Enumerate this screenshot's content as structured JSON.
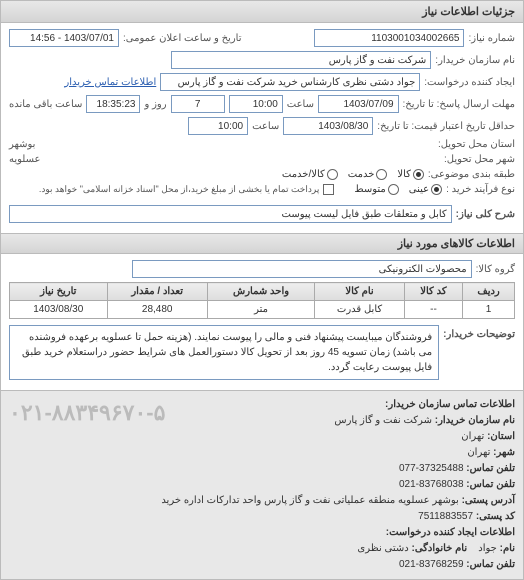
{
  "panel_title": "جزئیات اطلاعات نیاز",
  "header": {
    "request_no_label": "شماره نیاز:",
    "request_no": "1103001034002665",
    "announce_label": "تاریخ و ساعت اعلان عمومی:",
    "announce_value": "1403/07/01 - 14:56",
    "buyer_name_label": "نام سازمان خریدار:",
    "buyer_name": "شرکت نفت و گاز پارس",
    "creator_label": "ایجاد کننده درخواست:",
    "creator": "جواد دشتی نظری کارشناس خرید  شرکت نفت و گاز پارس",
    "contact_link": "اطلاعات تماس خریدار",
    "deadline_label": "مهلت ارسال پاسخ: تا تاریخ:",
    "deadline_date": "1403/07/09",
    "time_label": "ساعت",
    "deadline_time": "10:00",
    "days_label": "روز و",
    "days_value": "7",
    "remain_label": "ساعت باقی مانده",
    "remain_value": "18:35:23",
    "validity_label": "حداقل تاریخ اعتبار قیمت: تا تاریخ:",
    "validity_date": "1403/08/30",
    "validity_time": "10:00",
    "province_label": "استان محل تحویل:",
    "province": "بوشهر",
    "city_label": "شهر محل تحویل:",
    "city": "عسلویه",
    "category_label": "طبقه بندی موضوعی:",
    "cat_goods": "کالا",
    "cat_service": "خدمت",
    "cat_both": "کالا/خدمت",
    "process_label": "نوع فرآیند خرید :",
    "proc_cash": "عینی",
    "proc_medium": "متوسط",
    "pay_note": "پرداخت تمام یا بخشی از مبلغ خرید،از محل \"اسناد خزانه اسلامی\" خواهد بود."
  },
  "desc": {
    "label": "شرح کلی نیاز:",
    "value": "کابل و متعلقات طبق فایل لیست پیوست"
  },
  "goods": {
    "title": "اطلاعات کالاهای مورد نیاز",
    "group_label": "گروه کالا:",
    "group_value": "محصولات الکترونیکی",
    "columns": [
      "ردیف",
      "کد کالا",
      "نام کالا",
      "واحد شمارش",
      "تعداد / مقدار",
      "تاریخ نیاز"
    ],
    "rows": [
      [
        "1",
        "--",
        "کابل قدرت",
        "متر",
        "28,480",
        "1403/08/30"
      ]
    ]
  },
  "buyer_notes": {
    "label": "توضیحات خریدار:",
    "text": "فروشندگان میبایست پیشنهاد فنی و مالی را پیوست نمایند. (هزینه حمل تا عسلویه برعهده فروشنده می باشد) زمان تسویه 45 روز بعد از تحویل کالا دستورالعمل های شرایط حضور دراستعلام خرید طبق فایل پیوست رعایت گردد."
  },
  "contact": {
    "title": "اطلاعات تماس سازمان خریدار:",
    "org_label": "نام سازمان خریدار:",
    "org": "شرکت نفت و گاز پارس",
    "prov_label": "استان:",
    "prov": "تهران",
    "city_label": "شهر:",
    "city": "تهران",
    "tel_label": "تلفن تماس:",
    "tel": "37325488-077",
    "fax_label": "تلفن تماس:",
    "fax": "83768038-021",
    "addr_label": "آدرس پستی:",
    "addr": "بوشهر عسلویه منطقه عملیاتی نفت و گاز پارس واحد تدارکات اداره خرید",
    "zip_label": "کد پستی:",
    "zip": "7511883557",
    "req_title": "اطلاعات ایجاد کننده درخواست:",
    "name_label": "نام:",
    "name": "جواد",
    "family_label": "نام خانوادگی:",
    "family": "دشتی نظری",
    "req_tel_label": "تلفن تماس:",
    "req_tel": "83768259-021",
    "big_phone": "۰۲۱-۸۸۳۴۹۶۷۰-۵"
  }
}
